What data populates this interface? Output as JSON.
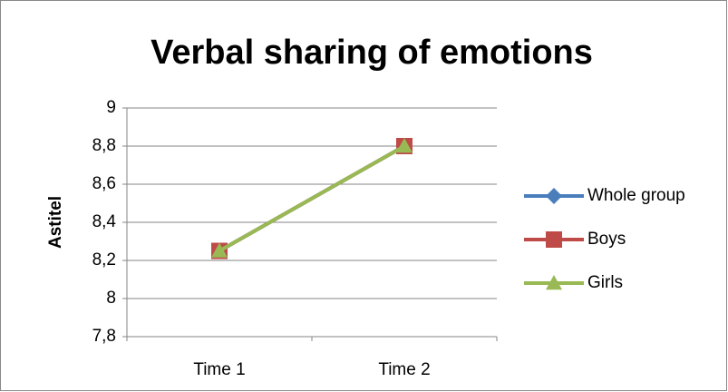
{
  "chart_data": {
    "type": "line",
    "title": "Verbal sharing of emotions",
    "y_label": "Astitel",
    "categories": [
      "Time 1",
      "Time 2"
    ],
    "series": [
      {
        "name": "Whole group",
        "color": "#4a7ebb",
        "marker": "diamond",
        "values": [
          8.25,
          8.8
        ]
      },
      {
        "name": "Boys",
        "color": "#be4b48",
        "marker": "square",
        "values": [
          8.25,
          8.8
        ]
      },
      {
        "name": "Girls",
        "color": "#98b954",
        "marker": "triangle",
        "values": [
          8.25,
          8.8
        ]
      }
    ],
    "ylim": [
      7.8,
      9
    ],
    "yticks": [
      {
        "value": 7.8,
        "label": "7,8"
      },
      8,
      {
        "value": 8.2,
        "label": "8,2"
      },
      {
        "value": 8.4,
        "label": "8,4"
      },
      {
        "value": 8.6,
        "label": "8,6"
      },
      {
        "value": 8.8,
        "label": "8,8"
      },
      9
    ],
    "grid": true,
    "legend": "right"
  }
}
